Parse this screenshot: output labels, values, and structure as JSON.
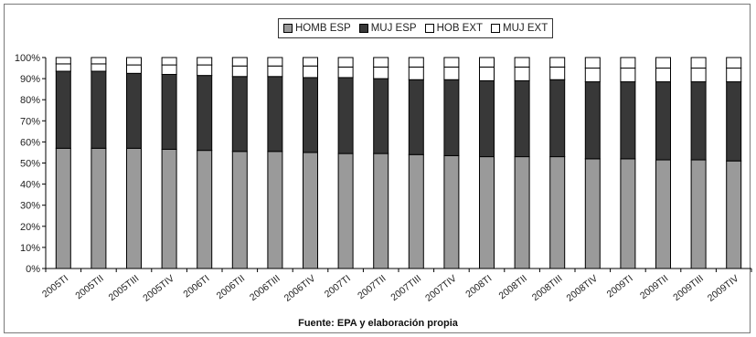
{
  "chart_data": {
    "type": "bar",
    "stacked": true,
    "percent": true,
    "categories": [
      "2005TI",
      "2005TII",
      "2005TIII",
      "2005TIV",
      "2006TI",
      "2006TII",
      "2006TIII",
      "2006TIV",
      "2007TI",
      "2007TII",
      "2007TIII",
      "2007TIV",
      "2008TI",
      "2008TII",
      "2008TIII",
      "2008TIV",
      "2009TI",
      "2009TII",
      "2009TIII",
      "2009TIV"
    ],
    "series": [
      {
        "name": "HOMB ESP",
        "color": "#9a9a9a",
        "values": [
          57,
          57,
          57,
          56.5,
          56,
          55.5,
          55.5,
          55,
          54.5,
          54.5,
          54,
          53.5,
          53,
          53,
          53,
          52,
          52,
          51.5,
          51.5,
          51
        ]
      },
      {
        "name": "MUJ ESP",
        "color": "#383838",
        "values": [
          36.5,
          36.5,
          35.5,
          35.5,
          35.5,
          35.5,
          35.5,
          35.5,
          36,
          35.5,
          35.5,
          36,
          36,
          36,
          36.5,
          36.5,
          36.5,
          37,
          37,
          37.5
        ]
      },
      {
        "name": "HOB EXT",
        "color": "#ffffff",
        "values": [
          3.5,
          3.5,
          4,
          4.5,
          5,
          5,
          5,
          5.5,
          5,
          5.5,
          6,
          6,
          6.5,
          6.5,
          6,
          6.5,
          6.5,
          6.5,
          6.5,
          6.5
        ]
      },
      {
        "name": "MUJ EXT",
        "color": "#ffffff",
        "values": [
          3,
          3,
          3.5,
          3.5,
          3.5,
          4,
          4,
          4,
          4.5,
          4.5,
          4.5,
          4.5,
          4.5,
          4.5,
          4.5,
          5,
          5,
          5,
          5,
          5
        ]
      }
    ],
    "yticks": [
      "0%",
      "10%",
      "20%",
      "30%",
      "40%",
      "50%",
      "60%",
      "70%",
      "80%",
      "90%",
      "100%"
    ],
    "ylim": [
      0,
      100
    ],
    "grid": false,
    "legend_position": "top-center",
    "source": "Fuente: EPA y elaboración propia"
  }
}
